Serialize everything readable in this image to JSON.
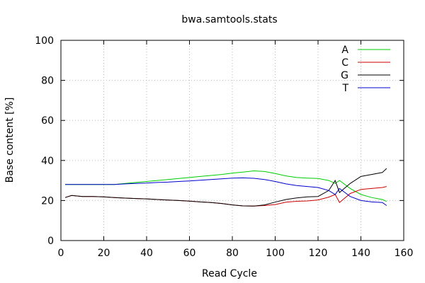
{
  "chart_data": {
    "type": "line",
    "title": "bwa.samtools.stats",
    "xlabel": "Read Cycle",
    "ylabel": "Base content [%]",
    "xlim": [
      0,
      160
    ],
    "ylim": [
      0,
      100
    ],
    "xticks": [
      0,
      20,
      40,
      60,
      80,
      100,
      120,
      140,
      160
    ],
    "yticks": [
      0,
      20,
      40,
      60,
      80,
      100
    ],
    "grid": true,
    "legend_position": "top-right",
    "x": [
      2,
      5,
      10,
      15,
      20,
      25,
      30,
      35,
      40,
      45,
      50,
      55,
      60,
      65,
      70,
      75,
      80,
      85,
      90,
      95,
      100,
      105,
      110,
      115,
      120,
      125,
      128,
      130,
      135,
      140,
      145,
      150,
      152
    ],
    "series": [
      {
        "name": "A",
        "color": "#00cc00",
        "values": [
          28,
          28,
          28,
          28,
          28,
          28,
          28.5,
          29,
          29.5,
          30,
          30.5,
          31,
          31.5,
          32,
          32.5,
          33,
          33.7,
          34.2,
          34.8,
          34.5,
          33.5,
          32.3,
          31.5,
          31.2,
          31,
          30,
          28.5,
          30,
          26,
          23,
          21.5,
          20.5,
          19.5
        ]
      },
      {
        "name": "C",
        "color": "#cc0000",
        "values": [
          21.5,
          22.5,
          22,
          22,
          21.8,
          21.5,
          21.2,
          21,
          20.8,
          20.5,
          20.2,
          20,
          19.7,
          19.3,
          19,
          18.5,
          17.8,
          17.3,
          17.2,
          17.5,
          18,
          19.2,
          19.6,
          19.8,
          20.3,
          21.7,
          23,
          19,
          23.5,
          25.5,
          26,
          26.5,
          27
        ]
      },
      {
        "name": "G",
        "color": "#000000",
        "values": [
          21.5,
          22.5,
          22,
          22,
          21.8,
          21.5,
          21.2,
          21,
          20.8,
          20.5,
          20.2,
          20,
          19.7,
          19.3,
          19,
          18.5,
          17.8,
          17.3,
          17.2,
          17.8,
          19.2,
          20.5,
          21.3,
          21.8,
          22,
          25,
          30,
          24,
          28.5,
          32,
          33,
          34,
          36
        ]
      },
      {
        "name": "T",
        "color": "#0000cc",
        "values": [
          28,
          28,
          28,
          28,
          28,
          28,
          28.3,
          28.5,
          28.7,
          29,
          29.2,
          29.5,
          29.8,
          30.1,
          30.5,
          30.8,
          31.2,
          31.3,
          31.1,
          30.5,
          29.5,
          28.3,
          27.5,
          27,
          26.5,
          25,
          23,
          26,
          22,
          20,
          19.3,
          19,
          17.5
        ]
      }
    ]
  }
}
